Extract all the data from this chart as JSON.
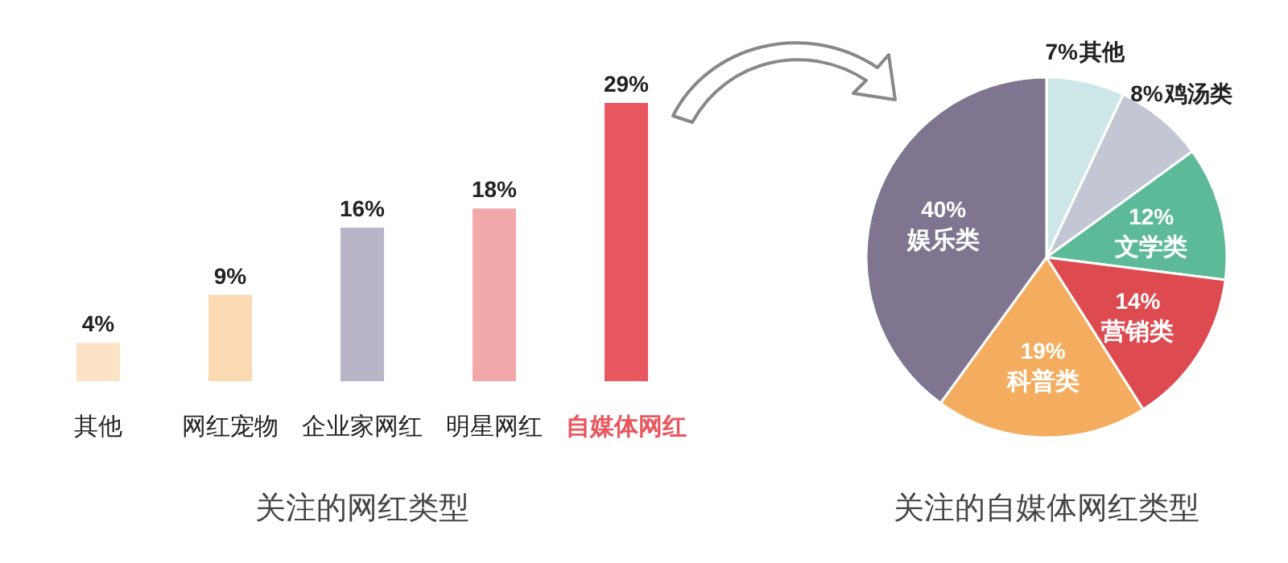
{
  "chart_data": [
    {
      "type": "bar",
      "title": "关注的网红类型",
      "categories": [
        "其他",
        "网红宠物",
        "企业家网红",
        "明星网红",
        "自媒体网红"
      ],
      "values": [
        4,
        9,
        16,
        18,
        29
      ],
      "value_labels": [
        "4%",
        "9%",
        "16%",
        "18%",
        "29%"
      ],
      "colors": [
        "#fde3c6",
        "#fbd9b3",
        "#b9b5c6",
        "#f2a7a9",
        "#e9575f"
      ]
    },
    {
      "type": "pie",
      "title": "关注的自媒体网红类型",
      "categories": [
        "其他",
        "鸡汤类",
        "文学类",
        "营销类",
        "科普类",
        "娱乐类"
      ],
      "values": [
        7,
        8,
        12,
        14,
        19,
        40
      ],
      "colors": [
        "#cde7e9",
        "#c3c7d3",
        "#5dba98",
        "#dd4a4f",
        "#f4ad5e",
        "#7f7590"
      ],
      "value_labels": [
        "7%",
        "8%",
        "12%",
        "14%",
        "19%",
        "40%"
      ]
    }
  ]
}
